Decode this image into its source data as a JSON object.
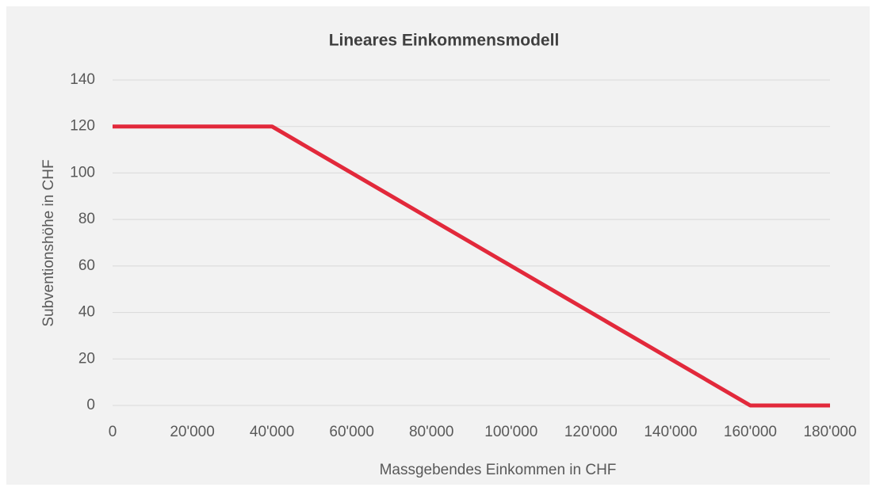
{
  "chart_data": {
    "type": "line",
    "title": "Lineares Einkommensmodell",
    "x_label": "Massgebendes Einkommen in CHF",
    "y_label": "Subventionshöhe in CHF",
    "x": [
      0,
      40000,
      160000,
      180000
    ],
    "series": [
      {
        "color": "#e2293b",
        "values": [
          120,
          120,
          0,
          0
        ]
      }
    ],
    "xlim": [
      0,
      180000
    ],
    "xticks": [
      0,
      {
        "value": 20000,
        "label": "20'000"
      },
      {
        "value": 40000,
        "label": "40'000"
      },
      {
        "value": 60000,
        "label": "60'000"
      },
      {
        "value": 80000,
        "label": "80'000"
      },
      {
        "value": 100000,
        "label": "100'000"
      },
      {
        "value": 120000,
        "label": "120'000"
      },
      {
        "value": 140000,
        "label": "140'000"
      },
      {
        "value": 160000,
        "label": "160'000"
      },
      {
        "value": 180000,
        "label": "180'000"
      }
    ],
    "ylim": [
      0,
      140
    ],
    "yticks": [
      0,
      20,
      40,
      60,
      80,
      100,
      120,
      140
    ],
    "grid": true
  }
}
